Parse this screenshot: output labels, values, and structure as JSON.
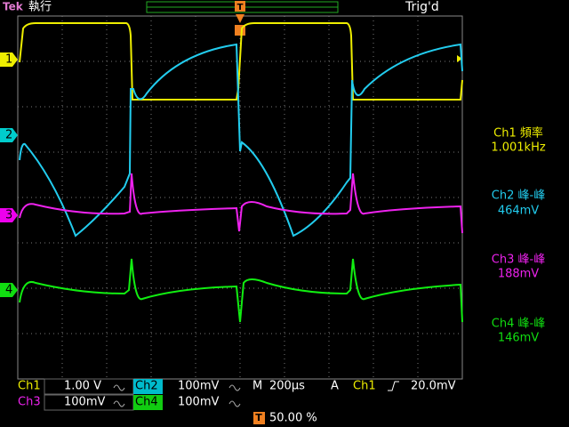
{
  "header": {
    "brand": "Tek",
    "status": "執行",
    "trigger_status": "Trig'd",
    "trigger_marker": "T"
  },
  "channel_markers": [
    "1",
    "2",
    "3",
    "4"
  ],
  "measurements": [
    {
      "label": "Ch1 頻率",
      "value": "1.001kHz"
    },
    {
      "label": "Ch2 峰-峰",
      "value": "464mV"
    },
    {
      "label": "Ch3 峰-峰",
      "value": "188mV"
    },
    {
      "label": "Ch4 峰-峰",
      "value": "146mV"
    }
  ],
  "settings": {
    "ch1": {
      "name": "Ch1",
      "scale": "1.00 V"
    },
    "ch2": {
      "name": "Ch2",
      "scale": "100mV"
    },
    "ch3": {
      "name": "Ch3",
      "scale": "100mV"
    },
    "ch4": {
      "name": "Ch4",
      "scale": "100mV"
    },
    "timebase": {
      "label": "M",
      "value": "200µs"
    },
    "trigger": {
      "mode": "A",
      "source": "Ch1",
      "level": "20.0mV"
    },
    "position": {
      "marker": "T",
      "value": "50.00 %"
    }
  }
}
